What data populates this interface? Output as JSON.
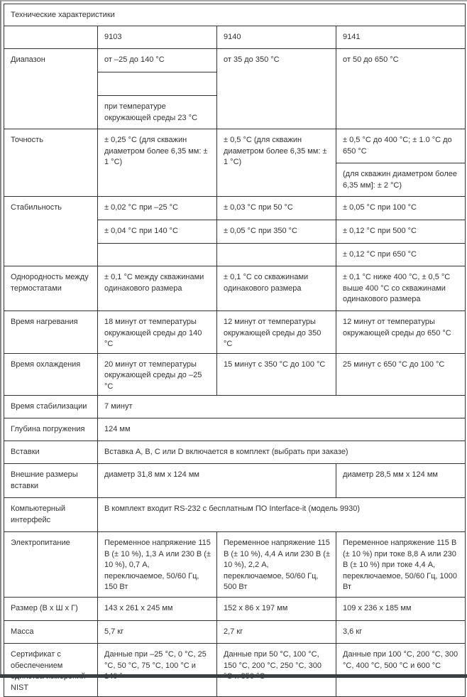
{
  "title": "Технические характеристики",
  "models": [
    "9103",
    "9140",
    "9141"
  ],
  "range": {
    "label": "Диапазон",
    "m9103": "от –25 до 140 °C",
    "m9103_blank": "",
    "m9103_note": "при температуре окружающей среды 23 °C",
    "m9140": "от 35 до 350 °C",
    "m9141": "от 50 до 650 °C"
  },
  "accuracy": {
    "label": "Точность",
    "m9103": "± 0,25 °C (для скважин диаметром более 6,35 мм: ± 1 °C)",
    "m9140": "± 0,5 °C (для скважин диаметром более 6,35 мм: ± 1 °C)",
    "m9141": "± 0,5 °C до 400 °C; ± 1.0 °C до 650 °C",
    "m9141_note": "(для скважин диаметром более 6,35 мм]: ± 2 °C)"
  },
  "stability": {
    "label": "Стабильность",
    "m9103": [
      "± 0,02 °C при –25 °C",
      "± 0,04 °C при 140 °C",
      ""
    ],
    "m9140": [
      "± 0,03 °C при 50 °C",
      "± 0,05 °C при 350 °C",
      ""
    ],
    "m9141": [
      "± 0,05 °C при 100 °C",
      "± 0,12 °C при 500 °C",
      "± 0,12 °C при 650 °C"
    ]
  },
  "rows": [
    {
      "label": "Однородность между термостатами",
      "m9103": "± 0,1 °C между скважинами одинакового размера",
      "m9140": "± 0,1 °C со скважинами одинакового размера",
      "m9141": "± 0,1 °C ниже 400 °C, ± 0,5 °C выше 400 °C со скважинами одинакового размера"
    },
    {
      "label": "Время нагревания",
      "m9103": "18 минут от температуры окружающей среды до 140 °C",
      "m9140": "12 минут от температуры окружающей среды до 350 °C",
      "m9141": "12 минут от температуры окружающей среды до 650 °C"
    },
    {
      "label": "Время охлаждения",
      "m9103": "20 минут от температуры окружающей среды до –25 °C",
      "m9140": "15 минут с 350 °C до 100 °C",
      "m9141": "25 минут с 650 °C до 100 °C"
    }
  ],
  "stabilization": {
    "label": "Время стабилизации",
    "value": "7 минут"
  },
  "depth": {
    "label": "Глубина погружения",
    "value": "124 мм"
  },
  "inserts": {
    "label": "Вставки",
    "value": "Вставка A, B, C или D включается в комплект (выбрать при заказе)"
  },
  "insert_size": {
    "label": "Внешние размеры вставки",
    "m9103_9140": "диаметр 31,8 мм x 124 мм",
    "m9141": "диаметр 28,5 мм x 124 мм"
  },
  "interface": {
    "label": "Компьютерный интерфейс",
    "value": "В комплект входит RS-232 с бесплатным ПО Interface-it (модель 9930)"
  },
  "rows2": [
    {
      "label": "Электропитание",
      "m9103": "Переменное напряжение 115 В (± 10 %), 1,3 А или 230 В (± 10 %), 0,7 А, переключаемое, 50/60 Гц, 150 Вт",
      "m9140": "Переменное напряжение 115 В (± 10 %), 4,4 А или 230 В (± 10 %), 2,2 А, переключаемое, 50/60 Гц, 500 Вт",
      "m9141": "Переменное напряжение 115 В (± 10 %) при токе 8,8 А или 230 В (± 10 %) при токе 4,4 А, переключаемое, 50/60 Гц, 1000 Вт"
    },
    {
      "label": "Размер (В x Ш x Г)",
      "m9103": "143 x 261 x 245 мм",
      "m9140": "152 x 86 x 197 мм",
      "m9141": "109 x 236 x 185 мм"
    },
    {
      "label": "Масса",
      "m9103": "5,7 кг",
      "m9140": "2,7 кг",
      "m9141": "3,6 кг"
    },
    {
      "label": "Сертификат с обеспечением единства измерений NIST",
      "m9103": "Данные при –25 °C, 0 °C, 25 °C, 50 °C, 75 °C, 100 °C и 140 °",
      "m9140": "Данные при 50 °C, 100 °C, 150 °C, 200 °C, 250 °C, 300 °C и 350 °C",
      "m9141": "Данные при 100 °C, 200 °C, 300 °C, 400 °C, 500 °C и 600 °C"
    }
  ]
}
